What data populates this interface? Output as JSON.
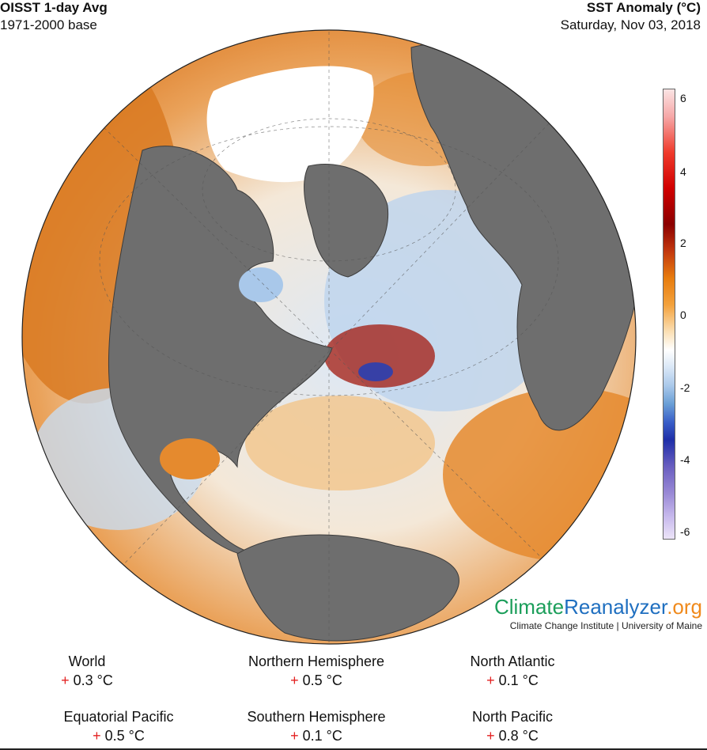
{
  "header": {
    "title": "OISST 1-day Avg",
    "base": "1971-2000 base",
    "anomaly_title": "SST Anomaly (°C)",
    "date": "Saturday, Nov 03, 2018"
  },
  "colorbar": {
    "ticks": [
      "6",
      "4",
      "2",
      "0",
      "-2",
      "-4",
      "-6"
    ],
    "colors": {
      "warm_max": "#fbe4e4",
      "red": "#d10000",
      "dark_red": "#8b0000",
      "orange": "#e77c0e",
      "zero": "#ffffff",
      "blue": "#3a5fc8",
      "violet": "#c6b8ec"
    }
  },
  "map": {
    "land_color": "#6e6e6e",
    "ice_color": "#ffffff",
    "ocean_warm": "#e8913a",
    "ocean_cool": "#a9c8ea"
  },
  "logo": {
    "part1": "Climate",
    "part2": "Reanalyzer",
    "part3": ".org",
    "subtitle": "Climate Change Institute | University of Maine"
  },
  "stats": [
    {
      "name": "World",
      "sign": "+",
      "value": "0.3 °C"
    },
    {
      "name": "Northern Hemisphere",
      "sign": "+",
      "value": "0.5 °C"
    },
    {
      "name": "North Atlantic",
      "sign": "+",
      "value": "0.1 °C"
    },
    {
      "name": "Equatorial Pacific",
      "sign": "+",
      "value": "0.5 °C"
    },
    {
      "name": "Southern Hemisphere",
      "sign": "+",
      "value": "0.1 °C"
    },
    {
      "name": "North Pacific",
      "sign": "+",
      "value": "0.8 °C"
    }
  ]
}
